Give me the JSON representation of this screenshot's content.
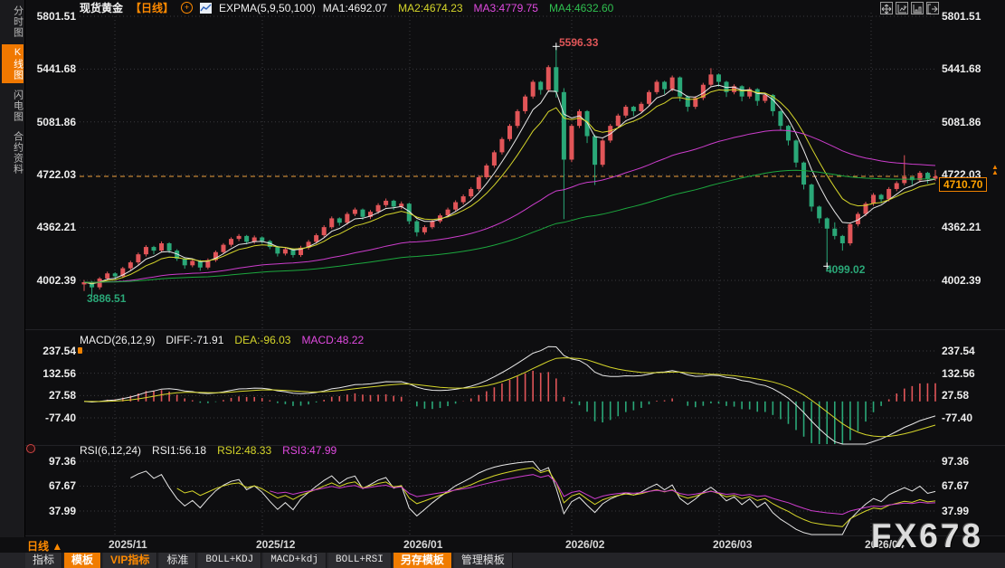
{
  "header": {
    "symbol": "现货黄金",
    "period_tag": "【日线】",
    "indicator_label": "EXPMA(5,9,50,100)",
    "ma_values": [
      {
        "text": "MA1:4692.07",
        "color": "#efefef"
      },
      {
        "text": "MA2:4674.23",
        "color": "#d6d62a"
      },
      {
        "text": "MA3:4779.75",
        "color": "#e04ae0"
      },
      {
        "text": "MA4:4632.60",
        "color": "#2fbf4f"
      }
    ]
  },
  "sidebar": {
    "items": [
      {
        "label": "分时图",
        "active": false
      },
      {
        "label": "K线图",
        "active": true
      },
      {
        "label": "闪电图",
        "active": false
      },
      {
        "label": "合约资料",
        "active": false
      }
    ]
  },
  "corner_icons": [
    "crosshair-move-icon",
    "y-axis-scale-icon",
    "x-axis-scale-icon",
    "export-chart-icon"
  ],
  "main_chart": {
    "y_labels": [
      "5801.51",
      "5441.68",
      "5081.86",
      "4722.03",
      "4362.21",
      "4002.39"
    ],
    "high_marker": "5596.33",
    "low_marker_left": "3886.51",
    "low_marker_right": "4099.02",
    "last_price": "4710.70"
  },
  "macd_panel": {
    "title": "MACD(26,12,9)",
    "values": [
      {
        "text": "DIFF:-71.91",
        "color": "#efefef"
      },
      {
        "text": "DEA:-96.03",
        "color": "#d6d62a"
      },
      {
        "text": "MACD:48.22",
        "color": "#e04ae0"
      }
    ],
    "y_labels": [
      "237.54",
      "132.56",
      "27.58",
      "-77.40"
    ]
  },
  "rsi_panel": {
    "title": "RSI(6,12,24)",
    "values": [
      {
        "text": "RSI1:56.18",
        "color": "#efefef"
      },
      {
        "text": "RSI2:48.33",
        "color": "#d6d62a"
      },
      {
        "text": "RSI3:47.99",
        "color": "#e04ae0"
      }
    ],
    "y_labels": [
      "97.36",
      "67.67",
      "37.99"
    ]
  },
  "x_axis": {
    "period_label": "日线 ▲",
    "dates": [
      "2025/11",
      "2025/12",
      "2026/01",
      "2026/02",
      "2026/03",
      "2026/04"
    ]
  },
  "toolbar": {
    "buttons": [
      {
        "label": "指标",
        "style": "plain"
      },
      {
        "label": "模板",
        "style": "active"
      },
      {
        "label": "VIP指标",
        "style": "orange-text"
      },
      {
        "label": "标准",
        "style": "plain"
      },
      {
        "label": "BOLL+KDJ",
        "style": "mono"
      },
      {
        "label": "MACD+kdj",
        "style": "mono"
      },
      {
        "label": "BOLL+RSI",
        "style": "mono"
      },
      {
        "label": "另存模板",
        "style": "active"
      },
      {
        "label": "管理模板",
        "style": "plain"
      }
    ]
  },
  "watermark": "FX678",
  "colors": {
    "up_candle": "#e15558",
    "down_candle": "#2aa878",
    "accent_orange": "#f07c00",
    "price_line_orange": "#f0a03c",
    "ema5": "#e8e8e8",
    "ema9": "#d6d62a",
    "ema50": "#cc3dcc",
    "ema100": "#1ca83e",
    "grid": "#3a3a3e",
    "high_marker_red": "#e05658",
    "low_marker_green": "#2aa878"
  },
  "chart_data": {
    "type": "candlestick+macd+rsi",
    "title": "现货黄金 日线",
    "y_axis_levels_main": [
      5801.51,
      5441.68,
      5081.86,
      4722.03,
      4362.21,
      4002.39
    ],
    "y_axis_levels_macd": [
      237.54,
      132.56,
      27.58,
      -77.4
    ],
    "y_axis_levels_rsi": [
      97.36,
      67.67,
      37.99
    ],
    "x_categories": [
      "2025/11",
      "2025/12",
      "2026/01",
      "2026/02",
      "2026/03",
      "2026/04"
    ],
    "month_start_indices": [
      4,
      23,
      42,
      63,
      82,
      102
    ],
    "ema_periods": [
      5,
      9,
      50,
      100
    ],
    "macd_params": [
      26,
      12,
      9
    ],
    "rsi_params": [
      6,
      12,
      24
    ],
    "extremes": {
      "high": 5596.33,
      "high_index": 61,
      "low_start": 3886.51,
      "low_start_index": 1,
      "low_late": 4099.02,
      "low_late_index": 96
    },
    "last_close": 4710.7,
    "candles": [
      [
        3975,
        4005,
        3930,
        3990
      ],
      [
        3990,
        3998,
        3886.51,
        3955
      ],
      [
        3955,
        4025,
        3940,
        4015
      ],
      [
        4015,
        4062,
        4000,
        4050
      ],
      [
        4050,
        4058,
        4005,
        4030
      ],
      [
        4030,
        4095,
        4018,
        4085
      ],
      [
        4085,
        4136,
        4070,
        4125
      ],
      [
        4125,
        4192,
        4110,
        4180
      ],
      [
        4180,
        4242,
        4165,
        4230
      ],
      [
        4230,
        4238,
        4180,
        4205
      ],
      [
        4205,
        4268,
        4192,
        4255
      ],
      [
        4255,
        4262,
        4188,
        4205
      ],
      [
        4205,
        4215,
        4135,
        4150
      ],
      [
        4150,
        4160,
        4082,
        4105
      ],
      [
        4105,
        4148,
        4092,
        4135
      ],
      [
        4135,
        4142,
        4068,
        4090
      ],
      [
        4090,
        4152,
        4078,
        4140
      ],
      [
        4140,
        4206,
        4128,
        4195
      ],
      [
        4195,
        4256,
        4182,
        4245
      ],
      [
        4245,
        4296,
        4232,
        4285
      ],
      [
        4285,
        4318,
        4270,
        4305
      ],
      [
        4305,
        4312,
        4248,
        4265
      ],
      [
        4265,
        4308,
        4252,
        4295
      ],
      [
        4295,
        4302,
        4252,
        4270
      ],
      [
        4270,
        4278,
        4215,
        4230
      ],
      [
        4230,
        4238,
        4165,
        4185
      ],
      [
        4185,
        4228,
        4172,
        4215
      ],
      [
        4215,
        4222,
        4158,
        4175
      ],
      [
        4175,
        4238,
        4162,
        4225
      ],
      [
        4225,
        4278,
        4212,
        4265
      ],
      [
        4265,
        4322,
        4252,
        4310
      ],
      [
        4310,
        4378,
        4298,
        4365
      ],
      [
        4365,
        4438,
        4352,
        4425
      ],
      [
        4425,
        4432,
        4375,
        4395
      ],
      [
        4395,
        4468,
        4382,
        4455
      ],
      [
        4455,
        4498,
        4440,
        4485
      ],
      [
        4485,
        4492,
        4415,
        4435
      ],
      [
        4435,
        4482,
        4420,
        4470
      ],
      [
        4470,
        4528,
        4456,
        4515
      ],
      [
        4515,
        4560,
        4500,
        4545
      ],
      [
        4545,
        4552,
        4482,
        4505
      ],
      [
        4505,
        4540,
        4488,
        4525
      ],
      [
        4525,
        4532,
        4385,
        4405
      ],
      [
        4405,
        4415,
        4302,
        4330
      ],
      [
        4330,
        4378,
        4315,
        4365
      ],
      [
        4365,
        4418,
        4352,
        4405
      ],
      [
        4405,
        4458,
        4392,
        4445
      ],
      [
        4445,
        4498,
        4432,
        4485
      ],
      [
        4485,
        4548,
        4472,
        4535
      ],
      [
        4535,
        4588,
        4520,
        4575
      ],
      [
        4575,
        4638,
        4562,
        4625
      ],
      [
        4625,
        4718,
        4610,
        4705
      ],
      [
        4705,
        4798,
        4692,
        4785
      ],
      [
        4785,
        4888,
        4770,
        4875
      ],
      [
        4875,
        4978,
        4860,
        4965
      ],
      [
        4965,
        5068,
        4950,
        5055
      ],
      [
        5055,
        5168,
        5040,
        5155
      ],
      [
        5155,
        5268,
        5138,
        5255
      ],
      [
        5255,
        5368,
        5240,
        5355
      ],
      [
        5355,
        5362,
        5268,
        5300
      ],
      [
        5300,
        5468,
        5285,
        5455
      ],
      [
        5455,
        5596.33,
        5248,
        5285
      ],
      [
        5285,
        5312,
        4420,
        4825
      ],
      [
        4825,
        5068,
        4808,
        5055
      ],
      [
        5055,
        5168,
        5040,
        5155
      ],
      [
        5155,
        5162,
        4938,
        4985
      ],
      [
        4985,
        4995,
        4652,
        4790
      ],
      [
        4790,
        4968,
        4775,
        4955
      ],
      [
        4955,
        5068,
        4940,
        5055
      ],
      [
        5055,
        5138,
        5040,
        5125
      ],
      [
        5125,
        5198,
        5110,
        5185
      ],
      [
        5185,
        5192,
        5122,
        5155
      ],
      [
        5155,
        5218,
        5140,
        5205
      ],
      [
        5205,
        5298,
        5190,
        5285
      ],
      [
        5285,
        5368,
        5270,
        5355
      ],
      [
        5355,
        5362,
        5272,
        5305
      ],
      [
        5305,
        5398,
        5290,
        5385
      ],
      [
        5385,
        5392,
        5222,
        5255
      ],
      [
        5255,
        5262,
        5152,
        5185
      ],
      [
        5185,
        5258,
        5170,
        5245
      ],
      [
        5245,
        5348,
        5230,
        5335
      ],
      [
        5335,
        5448,
        5320,
        5405
      ],
      [
        5405,
        5412,
        5322,
        5355
      ],
      [
        5355,
        5362,
        5252,
        5285
      ],
      [
        5285,
        5338,
        5270,
        5325
      ],
      [
        5325,
        5332,
        5222,
        5255
      ],
      [
        5255,
        5318,
        5240,
        5305
      ],
      [
        5305,
        5312,
        5192,
        5225
      ],
      [
        5225,
        5278,
        5210,
        5265
      ],
      [
        5265,
        5272,
        5122,
        5155
      ],
      [
        5155,
        5162,
        5022,
        5055
      ],
      [
        5055,
        5062,
        4922,
        4955
      ],
      [
        4955,
        4962,
        4772,
        4805
      ],
      [
        4805,
        4812,
        4622,
        4655
      ],
      [
        4655,
        4662,
        4472,
        4505
      ],
      [
        4505,
        4512,
        4392,
        4425
      ],
      [
        4425,
        4432,
        4099.02,
        4355
      ],
      [
        4355,
        4398,
        4282,
        4305
      ],
      [
        4305,
        4312,
        4205,
        4255
      ],
      [
        4255,
        4398,
        4240,
        4385
      ],
      [
        4385,
        4468,
        4370,
        4455
      ],
      [
        4455,
        4538,
        4440,
        4525
      ],
      [
        4525,
        4598,
        4510,
        4585
      ],
      [
        4585,
        4592,
        4528,
        4555
      ],
      [
        4555,
        4638,
        4540,
        4625
      ],
      [
        4625,
        4678,
        4610,
        4665
      ],
      [
        4665,
        4855,
        4650,
        4705
      ],
      [
        4705,
        4712,
        4652,
        4685
      ],
      [
        4685,
        4748,
        4670,
        4735
      ],
      [
        4735,
        4742,
        4662,
        4695
      ],
      [
        4695,
        4755,
        4680,
        4710.7
      ]
    ]
  }
}
